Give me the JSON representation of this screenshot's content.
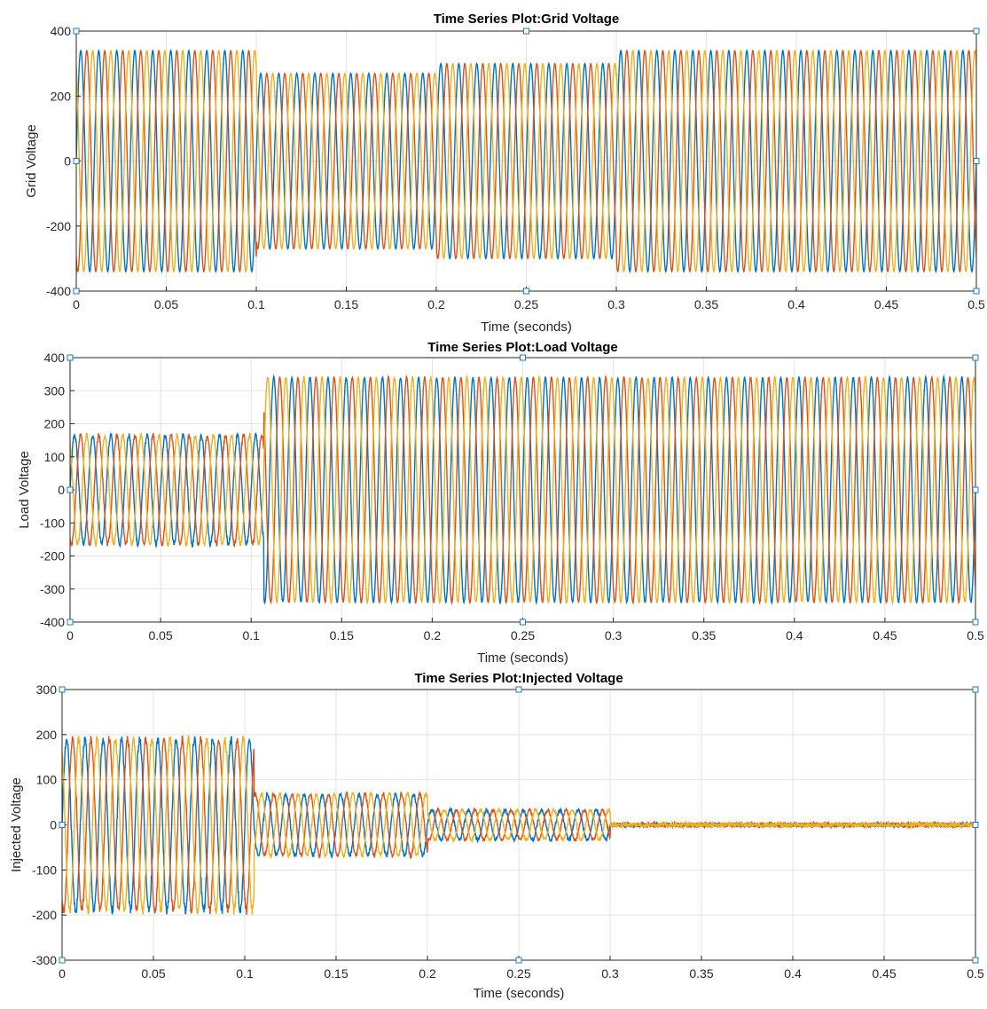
{
  "chart_data": [
    {
      "type": "line",
      "title": "Time Series Plot:Grid Voltage",
      "xlabel": "Time (seconds)",
      "ylabel": "Grid Voltage",
      "xlim": [
        0,
        0.5
      ],
      "ylim": [
        -400,
        400
      ],
      "xticks": [
        0,
        0.05,
        0.1,
        0.15,
        0.2,
        0.25,
        0.3,
        0.35,
        0.4,
        0.45,
        0.5
      ],
      "xtick_labels": [
        "0",
        "0.05",
        "0.1",
        "0.15",
        "0.2",
        "0.25",
        "0.3",
        "0.35",
        "0.4",
        "0.45",
        "0.5"
      ],
      "yticks": [
        -400,
        -200,
        0,
        200,
        400
      ],
      "ytick_labels": [
        "-400",
        "-200",
        "0",
        "200",
        "400"
      ],
      "grid": true,
      "frequency_hz": 100,
      "series": [
        {
          "color": "#0072BD",
          "phase_deg": 0
        },
        {
          "color": "#D95319",
          "phase_deg": -120
        },
        {
          "color": "#EDB120",
          "phase_deg": 120
        }
      ],
      "segments": [
        {
          "t_start": 0,
          "t_end": 0.1,
          "amplitude": 340,
          "noise": 0
        },
        {
          "t_start": 0.1,
          "t_end": 0.2,
          "amplitude": 270,
          "noise": 0
        },
        {
          "t_start": 0.2,
          "t_end": 0.3,
          "amplitude": 300,
          "noise": 0
        },
        {
          "t_start": 0.3,
          "t_end": 0.5,
          "amplitude": 340,
          "noise": 0
        }
      ]
    },
    {
      "type": "line",
      "title": "Time Series Plot:Load Voltage",
      "xlabel": "Time (seconds)",
      "ylabel": "Load Voltage",
      "xlim": [
        0,
        0.5
      ],
      "ylim": [
        -400,
        400
      ],
      "xticks": [
        0,
        0.05,
        0.1,
        0.15,
        0.2,
        0.25,
        0.3,
        0.35,
        0.4,
        0.45,
        0.5
      ],
      "xtick_labels": [
        "0",
        "0.05",
        "0.1",
        "0.15",
        "0.2",
        "0.25",
        "0.3",
        "0.35",
        "0.4",
        "0.45",
        "0.5"
      ],
      "yticks": [
        -400,
        -300,
        -200,
        -100,
        0,
        100,
        200,
        300,
        400
      ],
      "ytick_labels": [
        "-400",
        "-300",
        "-200",
        "-100",
        "0",
        "100",
        "200",
        "300",
        "400"
      ],
      "grid": true,
      "frequency_hz": 100,
      "series": [
        {
          "color": "#0072BD",
          "phase_deg": 0
        },
        {
          "color": "#D95319",
          "phase_deg": -120
        },
        {
          "color": "#EDB120",
          "phase_deg": 120
        }
      ],
      "segments": [
        {
          "t_start": 0,
          "t_end": 0.107,
          "amplitude": 165,
          "noise": 8
        },
        {
          "t_start": 0.107,
          "t_end": 0.5,
          "amplitude": 340,
          "noise": 3
        }
      ]
    },
    {
      "type": "line",
      "title": "Time Series Plot:Injected Voltage",
      "xlabel": "Time (seconds)",
      "ylabel": "Injected Voltage",
      "xlim": [
        0,
        0.5
      ],
      "ylim": [
        -300,
        300
      ],
      "xticks": [
        0,
        0.05,
        0.1,
        0.15,
        0.2,
        0.25,
        0.3,
        0.35,
        0.4,
        0.45,
        0.5
      ],
      "xtick_labels": [
        "0",
        "0.05",
        "0.1",
        "0.15",
        "0.2",
        "0.25",
        "0.3",
        "0.35",
        "0.4",
        "0.45",
        "0.5"
      ],
      "yticks": [
        -300,
        -200,
        -100,
        0,
        100,
        200,
        300
      ],
      "ytick_labels": [
        "-300",
        "-200",
        "-100",
        "0",
        "100",
        "200",
        "300"
      ],
      "grid": true,
      "frequency_hz": 100,
      "series": [
        {
          "color": "#0072BD",
          "phase_deg": 0
        },
        {
          "color": "#D95319",
          "phase_deg": -120
        },
        {
          "color": "#EDB120",
          "phase_deg": 120
        }
      ],
      "segments": [
        {
          "t_start": 0,
          "t_end": 0.105,
          "amplitude": 190,
          "noise": 10
        },
        {
          "t_start": 0.105,
          "t_end": 0.2,
          "amplitude": 68,
          "noise": 5
        },
        {
          "t_start": 0.2,
          "t_end": 0.3,
          "amplitude": 33,
          "noise": 4
        },
        {
          "t_start": 0.3,
          "t_end": 0.5,
          "amplitude": 0,
          "noise": 5
        }
      ]
    }
  ]
}
